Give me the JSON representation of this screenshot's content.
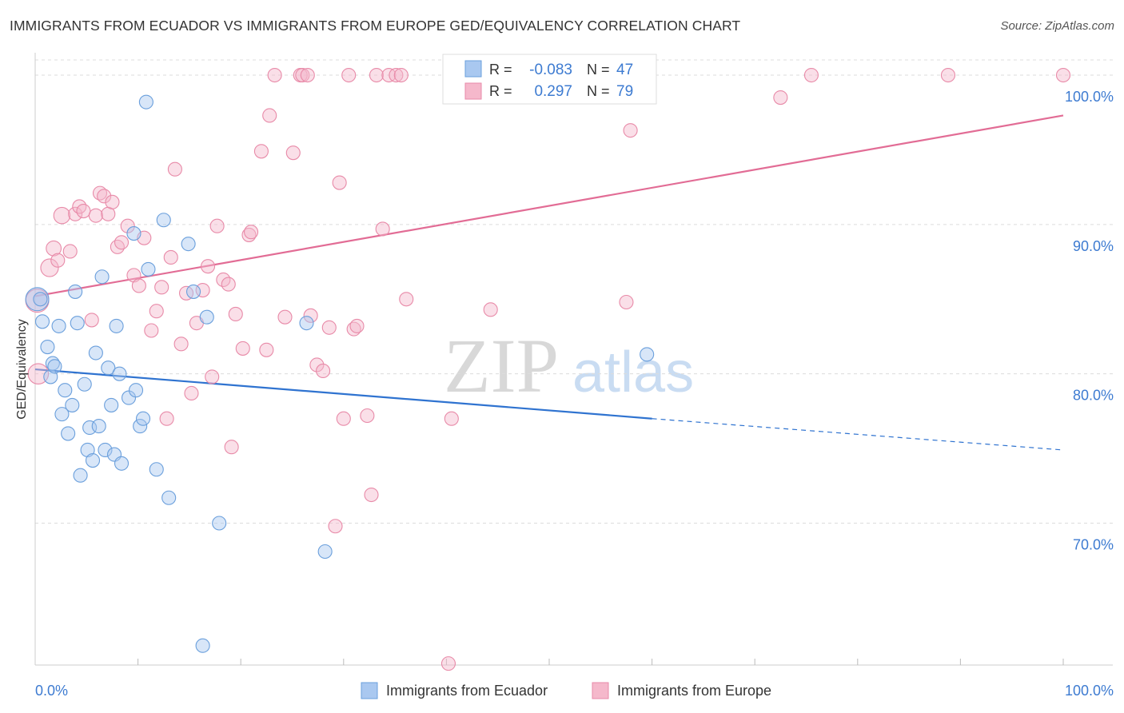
{
  "header": {
    "title": "IMMIGRANTS FROM ECUADOR VS IMMIGRANTS FROM EUROPE GED/EQUIVALENCY CORRELATION CHART",
    "source": "Source: ZipAtlas.com"
  },
  "watermark": {
    "zip": "ZIP",
    "atlas": "atlas"
  },
  "stats_legend": {
    "rows": [
      {
        "r_label": "R = ",
        "r_value": "-0.083",
        "n_label": "N = ",
        "n_value": "47",
        "color": "#a9c8f0"
      },
      {
        "r_label": "R = ",
        "r_value": "0.297",
        "n_label": "N = ",
        "n_value": "79",
        "color": "#f5b8cb"
      }
    ]
  },
  "colors": {
    "ecuador_fill": "#a9c8f0",
    "ecuador_stroke": "#6a9fdc",
    "ecuador_line": "#2f73d0",
    "europe_fill": "#f5b8cb",
    "europe_stroke": "#e88aa8",
    "europe_line": "#e26c95",
    "tick_label": "#3d7bd1",
    "grid": "#dcdcdc"
  },
  "chart_data": {
    "type": "scatter",
    "title": "IMMIGRANTS FROM ECUADOR VS IMMIGRANTS FROM EUROPE GED/EQUIVALENCY CORRELATION CHART",
    "xlabel": "",
    "ylabel": "GED/Equivalency",
    "xlim": [
      0,
      100
    ],
    "ylim": [
      60.5,
      101.5
    ],
    "x_tick_labels": [
      "0.0%",
      "100.0%"
    ],
    "y_ticks": [
      70,
      80,
      90,
      100
    ],
    "y_tick_labels": [
      "70.0%",
      "80.0%",
      "90.0%",
      "100.0%"
    ],
    "grid": true,
    "legend_position": "bottom-center",
    "series": [
      {
        "name": "Immigrants from Ecuador",
        "r": -0.083,
        "n": 47,
        "trend": {
          "x0": 0,
          "y0": 80.3,
          "x1": 60,
          "y1": 77.0,
          "dashed_to_x": 100,
          "dashed_y1": 74.9
        },
        "points": [
          [
            0.2,
            85.0,
            1.7
          ],
          [
            0.7,
            83.5,
            1
          ],
          [
            1.2,
            81.8,
            1
          ],
          [
            1.5,
            79.8,
            1
          ],
          [
            1.7,
            80.7,
            1
          ],
          [
            1.9,
            80.5,
            1
          ],
          [
            2.3,
            83.2,
            1
          ],
          [
            2.6,
            77.3,
            1
          ],
          [
            2.9,
            78.9,
            1
          ],
          [
            3.2,
            76.0,
            1
          ],
          [
            3.6,
            77.9,
            1
          ],
          [
            3.9,
            85.5,
            1
          ],
          [
            4.1,
            83.4,
            1
          ],
          [
            4.4,
            73.2,
            1
          ],
          [
            4.8,
            79.3,
            1
          ],
          [
            5.1,
            74.9,
            1
          ],
          [
            5.3,
            76.4,
            1
          ],
          [
            5.6,
            74.2,
            1
          ],
          [
            5.9,
            81.4,
            1
          ],
          [
            6.2,
            76.5,
            1
          ],
          [
            6.5,
            86.5,
            1
          ],
          [
            6.8,
            74.9,
            1
          ],
          [
            7.1,
            80.4,
            1
          ],
          [
            7.4,
            77.9,
            1
          ],
          [
            7.7,
            74.6,
            1
          ],
          [
            7.9,
            83.2,
            1
          ],
          [
            8.2,
            80.0,
            1
          ],
          [
            8.4,
            74.0,
            1
          ],
          [
            9.1,
            78.4,
            1
          ],
          [
            9.6,
            89.4,
            1
          ],
          [
            9.8,
            78.9,
            1
          ],
          [
            10.2,
            76.5,
            1
          ],
          [
            10.5,
            77.0,
            1
          ],
          [
            10.8,
            98.2,
            1
          ],
          [
            11.0,
            87.0,
            1
          ],
          [
            11.8,
            73.6,
            1
          ],
          [
            12.5,
            90.3,
            1
          ],
          [
            13.0,
            71.7,
            1
          ],
          [
            14.9,
            88.7,
            1
          ],
          [
            15.4,
            85.5,
            1
          ],
          [
            16.3,
            61.8,
            1
          ],
          [
            16.7,
            83.8,
            1
          ],
          [
            17.9,
            70.0,
            1
          ],
          [
            26.4,
            83.4,
            1
          ],
          [
            28.2,
            68.1,
            1
          ],
          [
            59.5,
            81.3,
            1
          ],
          [
            0.5,
            85.0,
            1
          ]
        ]
      },
      {
        "name": "Immigrants from Europe",
        "r": 0.297,
        "n": 79,
        "trend": {
          "x0": 0,
          "y0": 85.2,
          "x1": 100,
          "y1": 97.3
        },
        "points": [
          [
            0.2,
            84.9,
            1.7
          ],
          [
            0.3,
            80.0,
            1.5
          ],
          [
            1.4,
            87.1,
            1.3
          ],
          [
            1.8,
            88.4,
            1.1
          ],
          [
            2.2,
            87.6,
            1
          ],
          [
            2.6,
            90.6,
            1.2
          ],
          [
            3.4,
            88.2,
            1
          ],
          [
            3.9,
            90.7,
            1
          ],
          [
            4.3,
            91.2,
            1
          ],
          [
            4.7,
            90.9,
            1
          ],
          [
            5.5,
            83.6,
            1
          ],
          [
            5.9,
            90.6,
            1
          ],
          [
            6.3,
            92.1,
            1
          ],
          [
            6.7,
            91.9,
            1
          ],
          [
            7.1,
            90.7,
            1
          ],
          [
            7.5,
            91.5,
            1
          ],
          [
            8.0,
            88.5,
            1
          ],
          [
            8.4,
            88.8,
            1
          ],
          [
            9.0,
            89.9,
            1
          ],
          [
            9.6,
            86.6,
            1
          ],
          [
            10.1,
            85.9,
            1
          ],
          [
            10.6,
            89.1,
            1
          ],
          [
            11.3,
            82.9,
            1
          ],
          [
            11.8,
            84.2,
            1
          ],
          [
            12.3,
            85.8,
            1
          ],
          [
            12.8,
            77.0,
            1
          ],
          [
            13.2,
            87.8,
            1
          ],
          [
            13.6,
            93.7,
            1
          ],
          [
            14.2,
            82.0,
            1
          ],
          [
            14.7,
            85.4,
            1
          ],
          [
            15.2,
            78.7,
            1
          ],
          [
            15.7,
            83.4,
            1
          ],
          [
            16.3,
            85.6,
            1
          ],
          [
            16.8,
            87.2,
            1
          ],
          [
            17.2,
            79.8,
            1
          ],
          [
            17.7,
            89.9,
            1
          ],
          [
            18.3,
            86.3,
            1
          ],
          [
            18.8,
            86.0,
            1
          ],
          [
            19.1,
            75.1,
            1
          ],
          [
            19.5,
            84.0,
            1
          ],
          [
            20.2,
            81.7,
            1
          ],
          [
            20.8,
            89.3,
            1
          ],
          [
            21.0,
            89.5,
            1
          ],
          [
            22.0,
            94.9,
            1
          ],
          [
            22.5,
            81.6,
            1
          ],
          [
            22.8,
            97.3,
            1
          ],
          [
            23.3,
            100.0,
            1
          ],
          [
            24.3,
            83.8,
            1
          ],
          [
            25.1,
            94.8,
            1
          ],
          [
            25.8,
            100.0,
            1
          ],
          [
            26.0,
            100.0,
            1
          ],
          [
            26.5,
            100.0,
            1
          ],
          [
            26.8,
            83.9,
            1
          ],
          [
            27.4,
            80.6,
            1
          ],
          [
            28.0,
            80.2,
            1
          ],
          [
            28.6,
            83.1,
            1
          ],
          [
            29.2,
            69.8,
            1
          ],
          [
            29.6,
            92.8,
            1
          ],
          [
            30.0,
            77.0,
            1
          ],
          [
            30.5,
            100.0,
            1
          ],
          [
            31.0,
            83.0,
            1
          ],
          [
            31.3,
            83.2,
            1
          ],
          [
            32.3,
            77.2,
            1
          ],
          [
            32.7,
            71.9,
            1
          ],
          [
            33.2,
            100.0,
            1
          ],
          [
            33.8,
            89.7,
            1
          ],
          [
            34.4,
            100.0,
            1
          ],
          [
            35.1,
            100.0,
            1
          ],
          [
            35.6,
            100.0,
            1
          ],
          [
            36.1,
            85.0,
            1
          ],
          [
            40.2,
            60.6,
            1
          ],
          [
            40.5,
            77.0,
            1
          ],
          [
            44.3,
            84.3,
            1
          ],
          [
            47.8,
            100.0,
            1
          ],
          [
            57.5,
            84.8,
            1
          ],
          [
            57.9,
            96.3,
            1
          ],
          [
            72.5,
            98.5,
            1
          ],
          [
            75.5,
            100.0,
            1
          ],
          [
            88.8,
            100.0,
            1
          ],
          [
            100.0,
            100.0,
            1
          ]
        ]
      }
    ]
  }
}
